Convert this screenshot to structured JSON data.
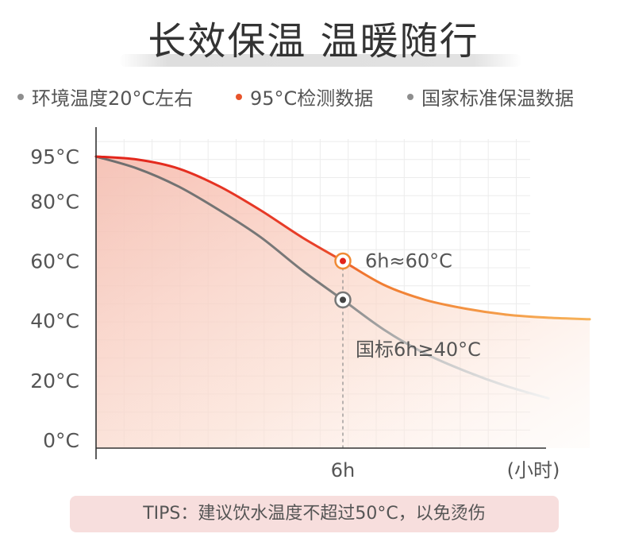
{
  "header": {
    "title": "长效保温 温暖随行"
  },
  "legend": [
    {
      "label": "环境温度20°C左右",
      "color": "#8e8e8e"
    },
    {
      "label": "95°C检测数据",
      "color": "#e8542b"
    },
    {
      "label": "国家标准保温数据",
      "color": "#8e8e8e"
    }
  ],
  "tips": "TIPS：建议饮水温度不超过50°C，以免烫伤",
  "chart_data": {
    "type": "line",
    "xlabel": "(小时)",
    "ylabel": "",
    "x_ticks": [
      {
        "x": 6,
        "label": "6h"
      }
    ],
    "y_ticks": [
      "0°C",
      "20°C",
      "40°C",
      "60°C",
      "80°C",
      "95°C"
    ],
    "xlim": [
      0,
      12
    ],
    "ylim": [
      0,
      100
    ],
    "grid": true,
    "series": [
      {
        "name": "95°C检测数据",
        "color": "#e2231a",
        "color_end": "#f39a45",
        "x": [
          0,
          1,
          2,
          3,
          4,
          5,
          6,
          7,
          8,
          9,
          10,
          11,
          12
        ],
        "y": [
          95,
          94,
          91,
          85,
          77,
          68,
          60,
          52,
          47,
          44,
          42,
          41,
          40.5
        ]
      },
      {
        "name": "国家标准保温数据",
        "color": "#707070",
        "color_end": "#e6e6e6",
        "x": [
          0,
          1,
          2,
          3,
          4,
          5,
          6,
          7,
          8,
          9,
          10,
          11
        ],
        "y": [
          95,
          91,
          85,
          77,
          68,
          57,
          47,
          37,
          29,
          23,
          18,
          14
        ]
      }
    ],
    "annotations": [
      {
        "series": 0,
        "x": 6,
        "y": 60,
        "label": "6h≈60°C",
        "color": "#f08a35"
      },
      {
        "series": 1,
        "x": 6,
        "y": 47,
        "label": "国标6h≥40°C",
        "color": "#777777"
      }
    ]
  }
}
